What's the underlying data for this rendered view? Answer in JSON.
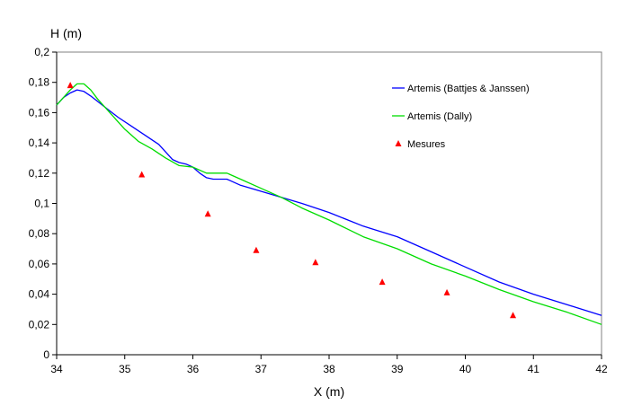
{
  "chart_data": {
    "type": "line",
    "title": "",
    "xlabel": "X (m)",
    "ylabel": "H (m)",
    "xlim": [
      34,
      42
    ],
    "ylim": [
      0,
      0.2
    ],
    "x_ticks": [
      34,
      35,
      36,
      37,
      38,
      39,
      40,
      41,
      42
    ],
    "y_ticks": [
      0,
      0.02,
      0.04,
      0.06,
      0.08,
      0.1,
      0.12,
      0.14,
      0.16,
      0.18,
      0.2
    ],
    "x_tick_labels": [
      "34",
      "35",
      "36",
      "37",
      "38",
      "39",
      "40",
      "41",
      "42"
    ],
    "y_tick_labels": [
      "0",
      "0,02",
      "0,04",
      "0,06",
      "0,08",
      "0,1",
      "0,12",
      "0,14",
      "0,16",
      "0,18",
      "0,2"
    ],
    "grid": false,
    "legend_position": "top-right",
    "series": [
      {
        "name": "Artemis (Battjes & Janssen)",
        "kind": "line",
        "color": "#0000FF",
        "points": [
          [
            34,
            0.165
          ],
          [
            34.1,
            0.17
          ],
          [
            34.2,
            0.173
          ],
          [
            34.3,
            0.175
          ],
          [
            34.4,
            0.174
          ],
          [
            34.5,
            0.171
          ],
          [
            34.7,
            0.164
          ],
          [
            34.9,
            0.157
          ],
          [
            35.1,
            0.151
          ],
          [
            35.3,
            0.145
          ],
          [
            35.5,
            0.139
          ],
          [
            35.6,
            0.134
          ],
          [
            35.7,
            0.129
          ],
          [
            35.8,
            0.127
          ],
          [
            35.9,
            0.126
          ],
          [
            36.0,
            0.124
          ],
          [
            36.1,
            0.12
          ],
          [
            36.2,
            0.117
          ],
          [
            36.3,
            0.116
          ],
          [
            36.5,
            0.116
          ],
          [
            36.7,
            0.112
          ],
          [
            37.0,
            0.108
          ],
          [
            37.3,
            0.104
          ],
          [
            37.6,
            0.1
          ],
          [
            38.0,
            0.094
          ],
          [
            38.5,
            0.085
          ],
          [
            39.0,
            0.078
          ],
          [
            39.5,
            0.068
          ],
          [
            40.0,
            0.058
          ],
          [
            40.5,
            0.048
          ],
          [
            41.0,
            0.04
          ],
          [
            41.5,
            0.033
          ],
          [
            42.0,
            0.026
          ]
        ]
      },
      {
        "name": "Artemis (Dally)",
        "kind": "line",
        "color": "#00DD00",
        "points": [
          [
            34,
            0.165
          ],
          [
            34.1,
            0.17
          ],
          [
            34.2,
            0.175
          ],
          [
            34.3,
            0.179
          ],
          [
            34.4,
            0.179
          ],
          [
            34.5,
            0.175
          ],
          [
            34.6,
            0.169
          ],
          [
            34.8,
            0.159
          ],
          [
            35.0,
            0.149
          ],
          [
            35.2,
            0.141
          ],
          [
            35.4,
            0.136
          ],
          [
            35.6,
            0.13
          ],
          [
            35.8,
            0.125
          ],
          [
            36.0,
            0.124
          ],
          [
            36.2,
            0.12
          ],
          [
            36.4,
            0.12
          ],
          [
            36.5,
            0.12
          ],
          [
            36.7,
            0.116
          ],
          [
            37.0,
            0.11
          ],
          [
            37.3,
            0.104
          ],
          [
            37.6,
            0.097
          ],
          [
            38.0,
            0.089
          ],
          [
            38.5,
            0.078
          ],
          [
            39.0,
            0.07
          ],
          [
            39.5,
            0.06
          ],
          [
            40.0,
            0.052
          ],
          [
            40.5,
            0.043
          ],
          [
            41.0,
            0.035
          ],
          [
            41.5,
            0.028
          ],
          [
            42.0,
            0.02
          ]
        ]
      },
      {
        "name": "Mesures",
        "kind": "scatter",
        "marker": "triangle",
        "color": "#FF0000",
        "points": [
          [
            34.2,
            0.178
          ],
          [
            35.25,
            0.119
          ],
          [
            36.22,
            0.093
          ],
          [
            36.93,
            0.069
          ],
          [
            37.8,
            0.061
          ],
          [
            38.78,
            0.048
          ],
          [
            39.73,
            0.041
          ],
          [
            40.7,
            0.026
          ]
        ]
      }
    ]
  }
}
